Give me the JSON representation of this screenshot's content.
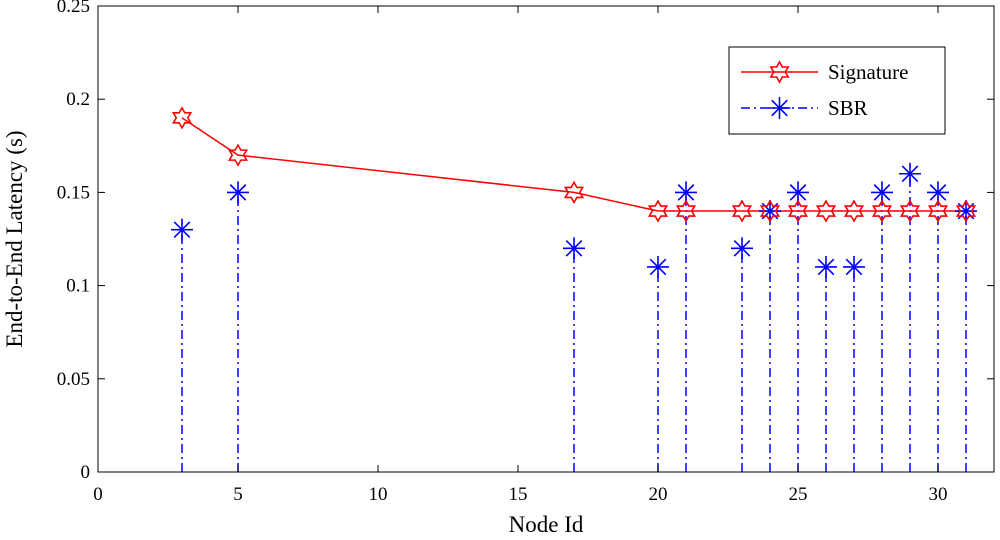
{
  "chart_data": {
    "type": "line",
    "xlabel": "Node Id",
    "ylabel": "End-to-End Latency (s)",
    "xlim": [
      0,
      32
    ],
    "ylim": [
      0,
      0.25
    ],
    "xticks": [
      0,
      5,
      10,
      15,
      20,
      25,
      30
    ],
    "xtick_labels": [
      "0",
      "5",
      "10",
      "15",
      "20",
      "25",
      "30"
    ],
    "yticks": [
      0,
      0.05,
      0.1,
      0.15,
      0.2,
      0.25
    ],
    "ytick_labels": [
      "0",
      "0.05",
      "0.1",
      "0.15",
      "0.2",
      "0.25"
    ],
    "grid": false,
    "legend_position": "top-right",
    "series": [
      {
        "name": "Signature",
        "style": "solid line with hexagram markers",
        "color": "#ff0000",
        "x": [
          3,
          5,
          17,
          20,
          21,
          23,
          24,
          25,
          26,
          27,
          28,
          29,
          30,
          31
        ],
        "y": [
          0.19,
          0.17,
          0.15,
          0.14,
          0.14,
          0.14,
          0.14,
          0.14,
          0.14,
          0.14,
          0.14,
          0.14,
          0.14,
          0.14
        ]
      },
      {
        "name": "SBR",
        "style": "dash-dot stem with asterisk markers",
        "color": "#0000ff",
        "x": [
          3,
          5,
          17,
          20,
          21,
          23,
          24,
          25,
          26,
          27,
          28,
          29,
          30,
          31
        ],
        "y": [
          0.13,
          0.15,
          0.12,
          0.11,
          0.15,
          0.12,
          0.14,
          0.15,
          0.11,
          0.11,
          0.15,
          0.16,
          0.15,
          0.14
        ]
      }
    ]
  }
}
